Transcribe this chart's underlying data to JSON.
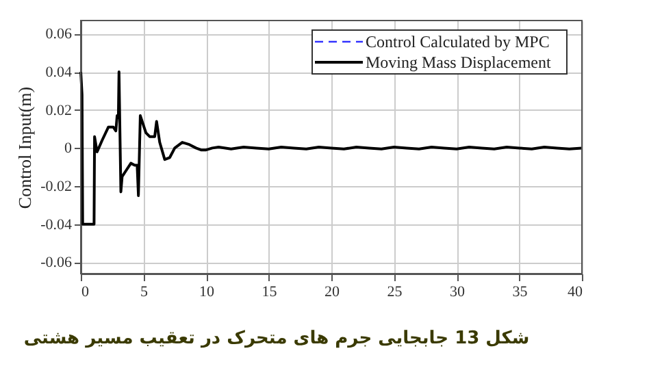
{
  "chart_data": {
    "type": "line",
    "xlabel": null,
    "ylabel": "Control Input(m)",
    "x": [
      0,
      0.1,
      0.15,
      1.06,
      1.1,
      1.3,
      1.7,
      2.2,
      2.6,
      2.8,
      2.9,
      3.0,
      3.05,
      3.2,
      3.3,
      3.6,
      4.0,
      4.3,
      4.5,
      4.6,
      4.75,
      5.2,
      5.5,
      5.9,
      6.05,
      6.3,
      6.7,
      7.1,
      7.5,
      8.1,
      8.6,
      9.2,
      9.6,
      10,
      10.5,
      11,
      12,
      13,
      14,
      15,
      16,
      17,
      18,
      19,
      20,
      21,
      22,
      23,
      24,
      25,
      26,
      27,
      28,
      29,
      30,
      31,
      32,
      33,
      34,
      35,
      36,
      37,
      38,
      39,
      40
    ],
    "series": [
      {
        "name": "Control Calculated by MPC",
        "color": "#3333ff",
        "line_style": "dashed",
        "values": [
          null,
          null,
          null,
          null,
          null,
          null,
          null,
          null,
          null,
          null,
          null,
          null,
          null,
          null,
          null,
          null,
          null,
          null,
          null,
          null,
          null,
          null,
          null,
          null,
          null,
          null,
          null,
          null,
          null,
          null,
          null,
          null,
          null,
          null,
          null,
          null,
          null,
          null,
          null,
          null,
          null,
          null,
          null,
          null,
          null,
          null,
          null,
          null,
          null,
          null,
          null,
          null,
          null,
          null,
          null,
          null,
          null,
          null,
          null,
          null,
          null,
          null,
          null,
          null,
          null
        ]
      },
      {
        "name": "Moving Mass Displacement",
        "color": "#000000",
        "line_style": "solid",
        "values": [
          0.04,
          0.028,
          -0.04,
          -0.04,
          0.006,
          -0.002,
          0.004,
          0.011,
          0.011,
          0.009,
          0.017,
          0.016,
          0.04,
          -0.023,
          -0.015,
          -0.012,
          -0.008,
          -0.009,
          -0.009,
          -0.025,
          0.017,
          0.008,
          0.006,
          0.006,
          0.014,
          0.003,
          -0.006,
          -0.005,
          0,
          0.003,
          0.002,
          0,
          -0.001,
          -0.001,
          0,
          0.0005,
          -0.0005,
          0.0005,
          0,
          -0.0005,
          0.0005,
          0,
          -0.0005,
          0.0005,
          0,
          -0.0005,
          0.0005,
          0,
          -0.0005,
          0.0005,
          0,
          -0.0005,
          0.0005,
          0,
          -0.0005,
          0.0005,
          0,
          -0.0005,
          0.0005,
          0,
          -0.0005,
          0.0005,
          0,
          -0.0005,
          0
        ]
      }
    ],
    "xlim": [
      0,
      40
    ],
    "xticks": [
      0,
      5,
      10,
      15,
      20,
      25,
      30,
      35,
      40
    ],
    "ylim": [
      -0.066,
      0.067
    ],
    "yticks": [
      -0.06,
      -0.04,
      -0.02,
      0,
      0.02,
      0.04,
      0.06
    ],
    "grid": true,
    "legend": "top right",
    "marker": "none",
    "annotations": [
      "شکل 13 جابجایی جرم های متحرک در تعقیب مسیر هشتی"
    ]
  }
}
